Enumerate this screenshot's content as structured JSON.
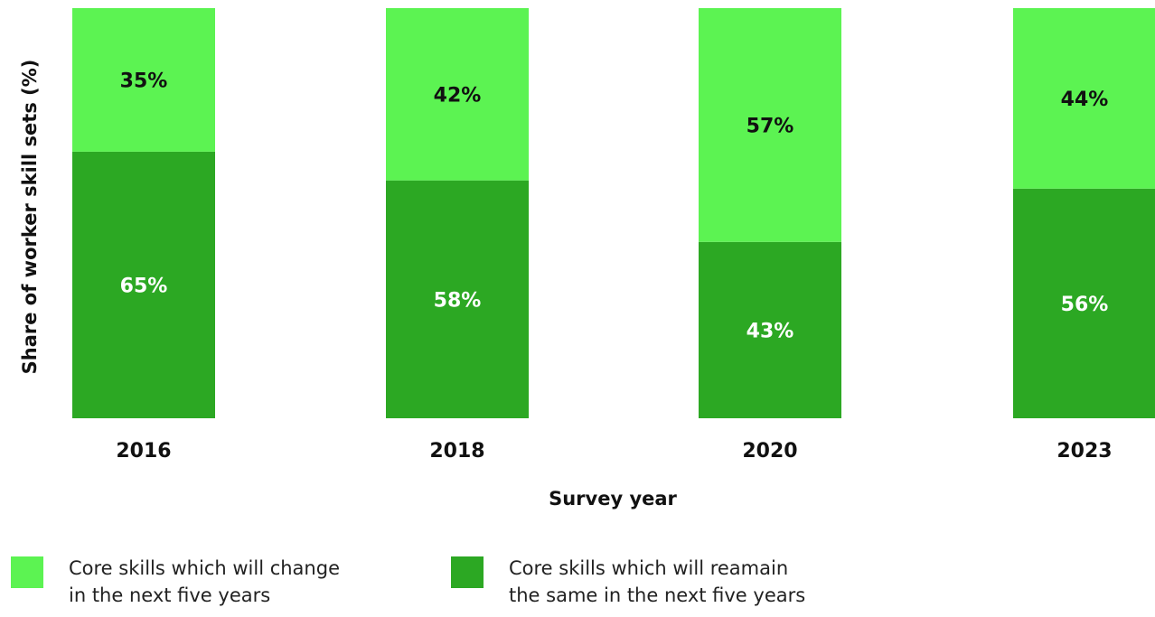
{
  "chart_data": {
    "type": "bar",
    "stacked": true,
    "categories": [
      "2016",
      "2018",
      "2020",
      "2023"
    ],
    "series": [
      {
        "name": "Core skills which will reamain\nthe same in the next five years",
        "values": [
          65,
          58,
          43,
          56
        ],
        "labels": [
          "65%",
          "58%",
          "43%",
          "56%"
        ],
        "color": "#2ca823",
        "label_color": "#ffffff"
      },
      {
        "name": "Core skills which will change\nin the next five years",
        "values": [
          35,
          42,
          57,
          44
        ],
        "labels": [
          "35%",
          "42%",
          "57%",
          "44%"
        ],
        "color": "#5cf352",
        "label_color": "#111111"
      }
    ],
    "xlabel": "Survey year",
    "ylabel": "Share of worker skill sets (%)",
    "ylim": [
      0,
      100
    ],
    "grid": false,
    "legend_position": "bottom"
  },
  "legend": {
    "change_label": "Core skills which will change\nin the next five years",
    "change_color": "#5cf352",
    "remain_label": "Core skills which will reamain\nthe same in the next five years",
    "remain_color": "#2ca823"
  }
}
